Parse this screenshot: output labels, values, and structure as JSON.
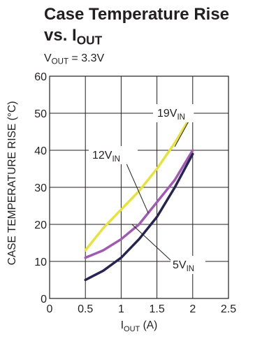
{
  "title_line1": "Case Temperature Rise",
  "title_line2_main": "vs. I",
  "title_line2_sub": "OUT",
  "condition": {
    "main": "V",
    "sub": "OUT",
    "rest": " = 3.3V"
  },
  "chart_data": {
    "type": "line",
    "title": "Case Temperature Rise vs. IOUT",
    "xlabel": {
      "main": "I",
      "sub": "OUT",
      "rest": " (A)"
    },
    "ylabel": "CASE TEMPERATURE RISE (°C)",
    "xlim": [
      0,
      2.5
    ],
    "ylim": [
      0,
      60
    ],
    "xticks": [
      0,
      0.5,
      1,
      1.5,
      2,
      2.5
    ],
    "xtick_labels": [
      "0",
      "0.5",
      "1",
      "1.5",
      "2",
      "2.5"
    ],
    "yticks": [
      0,
      10,
      20,
      30,
      40,
      50,
      60
    ],
    "ytick_labels": [
      "0",
      "10",
      "20",
      "30",
      "40",
      "50",
      "60"
    ],
    "grid": true,
    "series": [
      {
        "name": "19VIN",
        "label_main": "19V",
        "label_sub": "IN",
        "color": "#e8e33a",
        "x": [
          0.5,
          0.75,
          1.0,
          1.25,
          1.5,
          1.75,
          2.0
        ],
        "y": [
          13,
          19,
          24,
          29,
          35,
          42,
          50
        ]
      },
      {
        "name": "12VIN",
        "label_main": "12V",
        "label_sub": "IN",
        "color": "#a05ab4",
        "x": [
          0.5,
          0.75,
          1.0,
          1.25,
          1.5,
          1.75,
          2.0
        ],
        "y": [
          11,
          13,
          16,
          20,
          26,
          32,
          40
        ]
      },
      {
        "name": "5VIN",
        "label_main": "5V",
        "label_sub": "IN",
        "color": "#262452",
        "x": [
          0.5,
          0.75,
          1.0,
          1.25,
          1.5,
          1.75,
          2.0
        ],
        "y": [
          5,
          7.5,
          11,
          16,
          22,
          30,
          39
        ]
      }
    ]
  }
}
